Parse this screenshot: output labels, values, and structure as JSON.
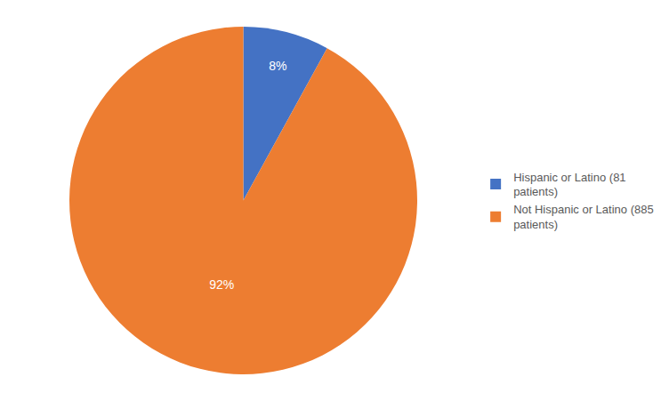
{
  "chart_data": {
    "type": "pie",
    "categories": [
      "Hispanic or Latino (81\npatients)",
      "Not Hispanic or Latino (885\npatients)"
    ],
    "values": [
      8,
      92
    ],
    "value_labels": [
      "8%",
      "92%"
    ],
    "colors": [
      "#4472C4",
      "#ED7D31"
    ],
    "data_labels": true,
    "legend": "right"
  }
}
